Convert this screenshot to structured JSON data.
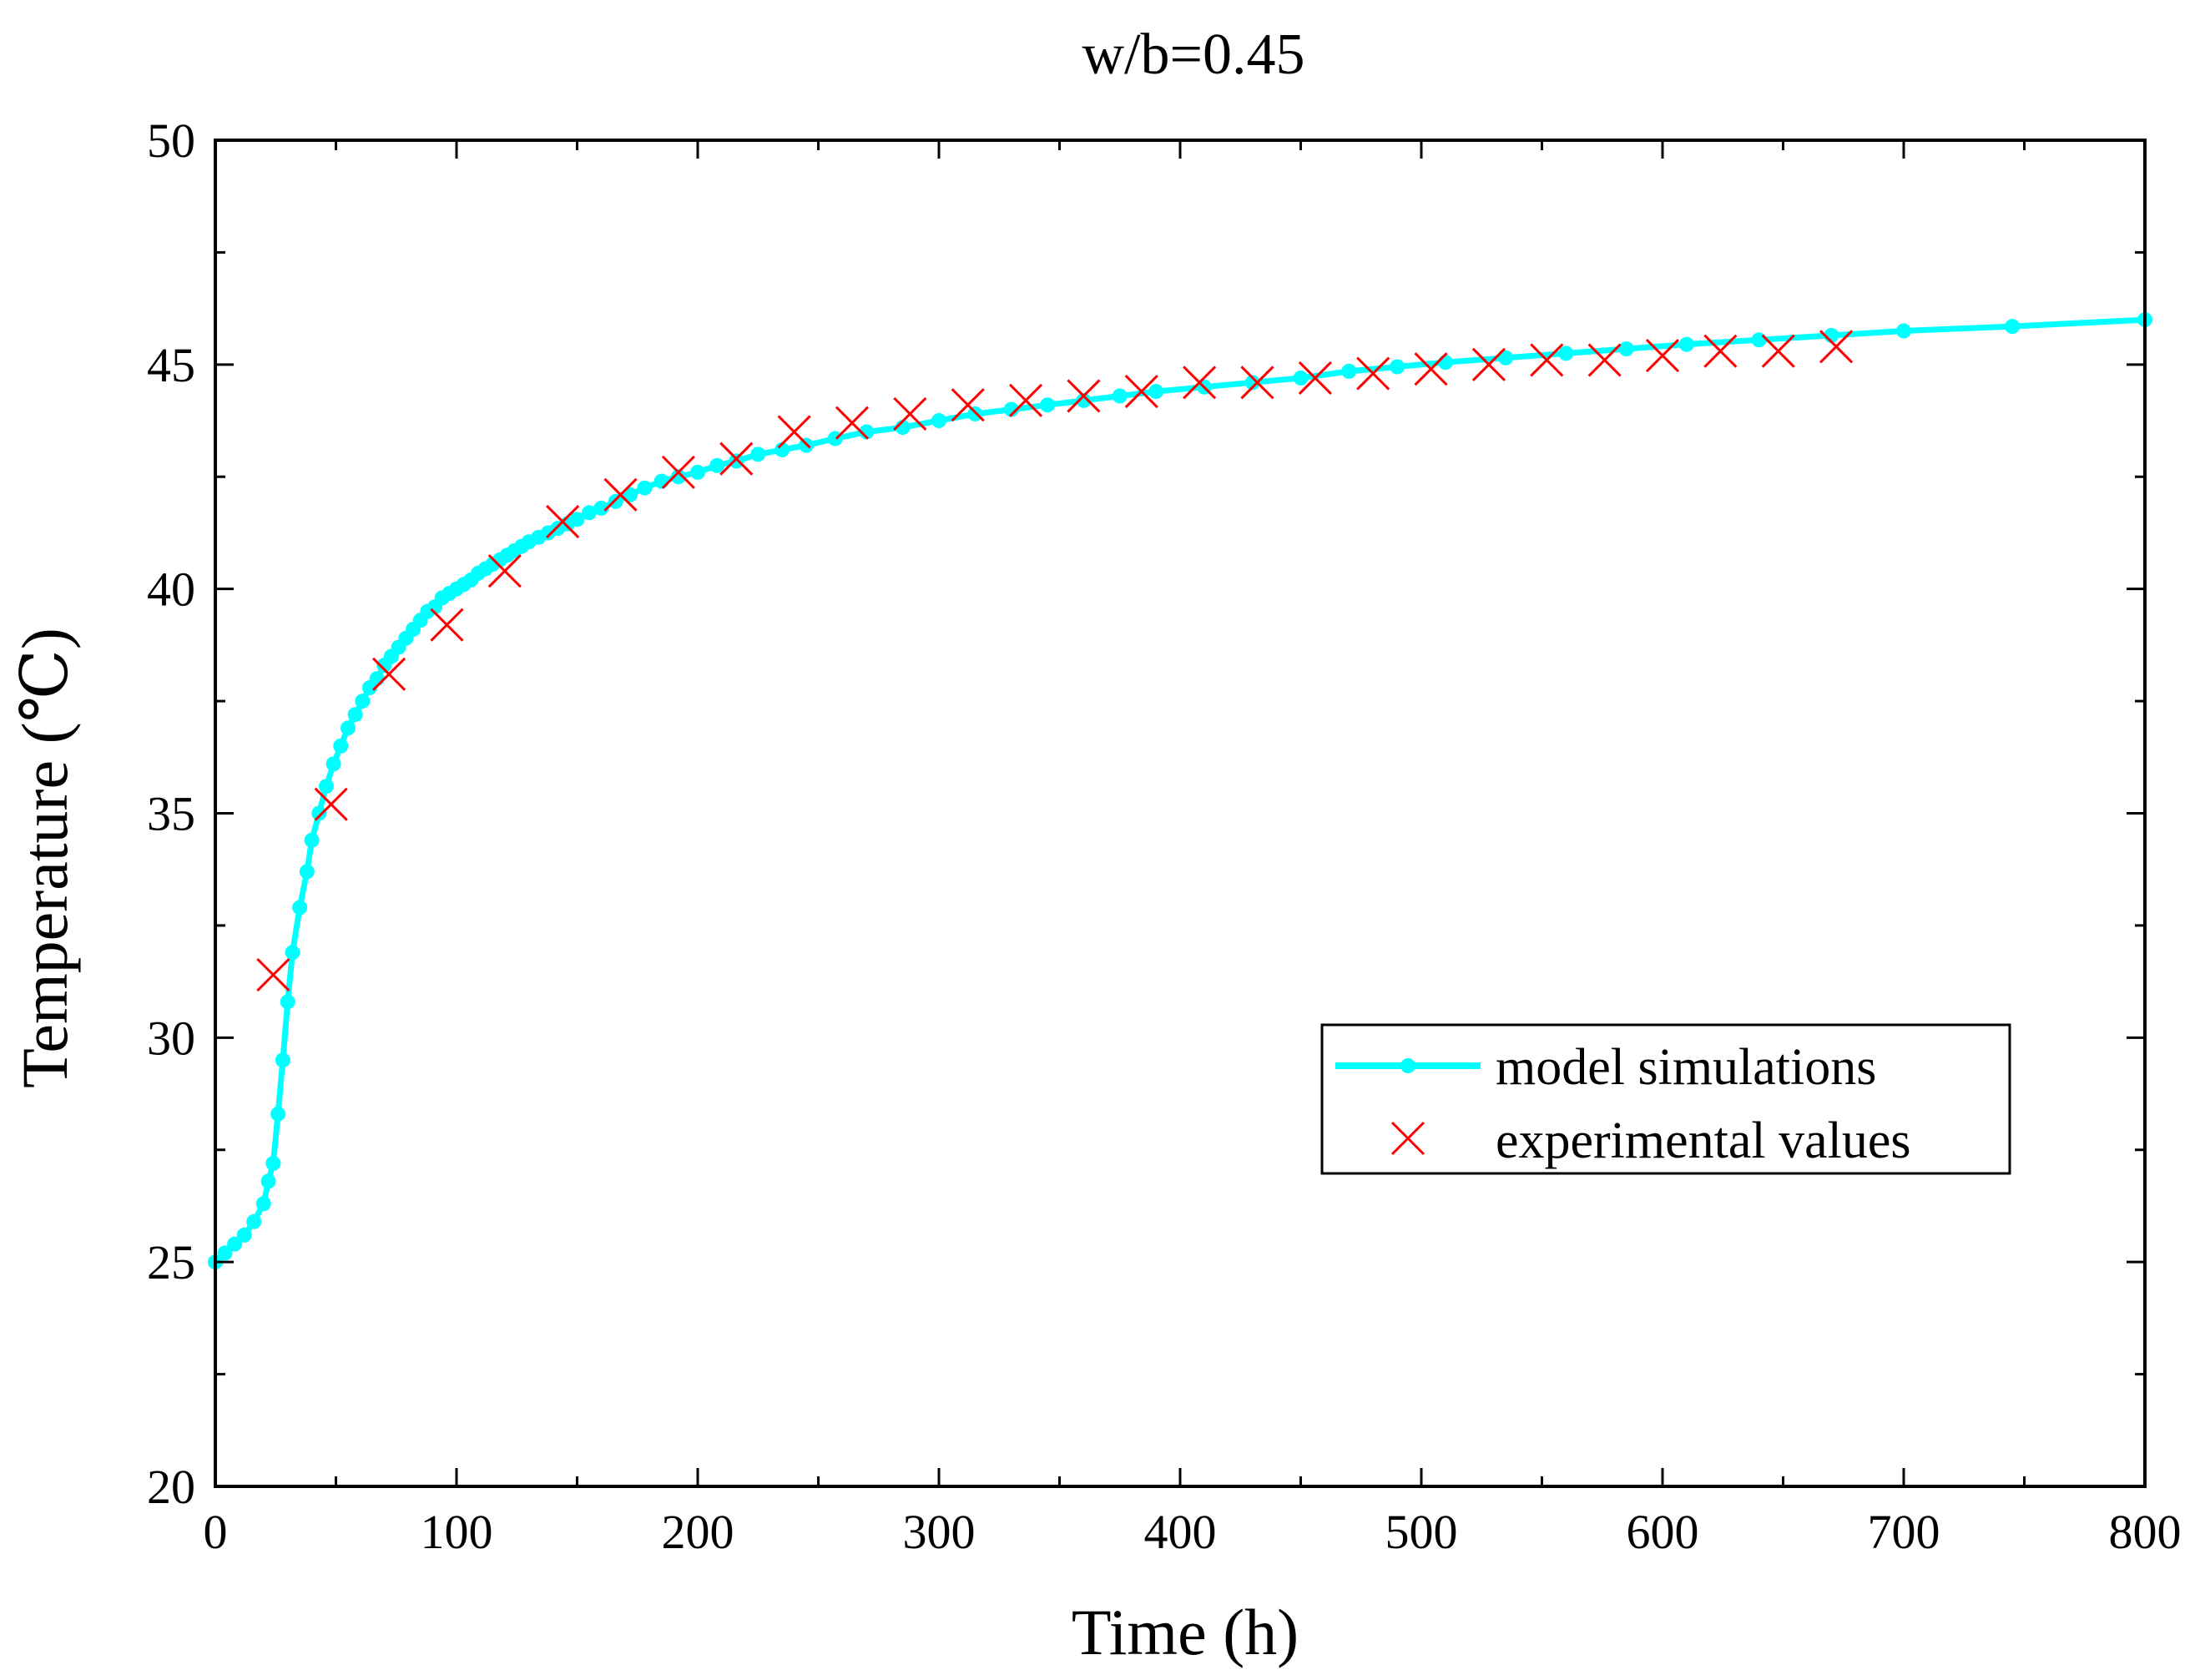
{
  "chart_data": {
    "type": "line",
    "title": "w/b=0.45",
    "xlabel": "Time (h)",
    "ylabel": "Temperature (℃)",
    "xlim": [
      0,
      800
    ],
    "ylim": [
      20,
      50
    ],
    "xticks": [
      "0",
      "100",
      "200",
      "300",
      "400",
      "500",
      "600",
      "700",
      "800"
    ],
    "yticks": [
      "20",
      "25",
      "30",
      "35",
      "40",
      "45",
      "50"
    ],
    "grid": false,
    "legend_position": "center-right",
    "series": [
      {
        "name": "model simulations",
        "style": "line-with-dots",
        "color": "#00FFFF",
        "x": [
          0,
          4,
          8,
          12,
          16,
          20,
          22,
          24,
          26,
          28,
          30,
          32,
          35,
          38,
          40,
          43,
          46,
          49,
          52,
          55,
          58,
          61,
          64,
          67,
          70,
          73,
          76,
          79,
          82,
          85,
          88,
          91,
          94,
          97,
          100,
          103,
          106,
          109,
          112,
          115,
          118,
          121,
          124,
          127,
          130,
          134,
          138,
          142,
          146,
          150,
          155,
          160,
          166,
          172,
          178,
          185,
          192,
          200,
          208,
          216,
          225,
          235,
          245,
          257,
          270,
          285,
          300,
          315,
          330,
          345,
          360,
          375,
          390,
          410,
          430,
          450,
          470,
          490,
          510,
          535,
          560,
          585,
          610,
          640,
          670,
          700,
          745,
          800
        ],
        "y": [
          25.0,
          25.2,
          25.4,
          25.6,
          25.9,
          26.3,
          26.8,
          27.2,
          28.3,
          29.5,
          30.8,
          31.9,
          32.9,
          33.7,
          34.4,
          35.0,
          35.6,
          36.1,
          36.5,
          36.9,
          37.2,
          37.5,
          37.8,
          38.0,
          38.3,
          38.5,
          38.7,
          38.9,
          39.1,
          39.3,
          39.5,
          39.6,
          39.8,
          39.9,
          40.0,
          40.1,
          40.2,
          40.35,
          40.45,
          40.55,
          40.65,
          40.75,
          40.85,
          40.95,
          41.05,
          41.15,
          41.25,
          41.35,
          41.45,
          41.55,
          41.7,
          41.8,
          41.95,
          42.1,
          42.25,
          42.4,
          42.5,
          42.6,
          42.75,
          42.85,
          43.0,
          43.1,
          43.2,
          43.35,
          43.5,
          43.6,
          43.75,
          43.9,
          44.0,
          44.1,
          44.2,
          44.3,
          44.4,
          44.5,
          44.6,
          44.7,
          44.85,
          44.95,
          45.05,
          45.15,
          45.25,
          45.35,
          45.45,
          45.55,
          45.65,
          45.75,
          45.85,
          46.0
        ]
      },
      {
        "name": "experimental values",
        "style": "x-markers",
        "color": "#FF0000",
        "x": [
          24,
          48,
          72,
          96,
          120,
          144,
          168,
          192,
          216,
          240,
          264,
          288,
          312,
          336,
          360,
          384,
          408,
          432,
          456,
          480,
          504,
          528,
          552,
          576,
          600,
          624,
          648,
          672
        ],
        "y": [
          31.4,
          35.2,
          38.1,
          39.2,
          40.4,
          41.5,
          42.1,
          42.6,
          42.9,
          43.5,
          43.7,
          43.9,
          44.1,
          44.2,
          44.3,
          44.4,
          44.6,
          44.6,
          44.7,
          44.8,
          44.9,
          45.0,
          45.1,
          45.1,
          45.2,
          45.3,
          45.3,
          45.4
        ]
      }
    ]
  }
}
